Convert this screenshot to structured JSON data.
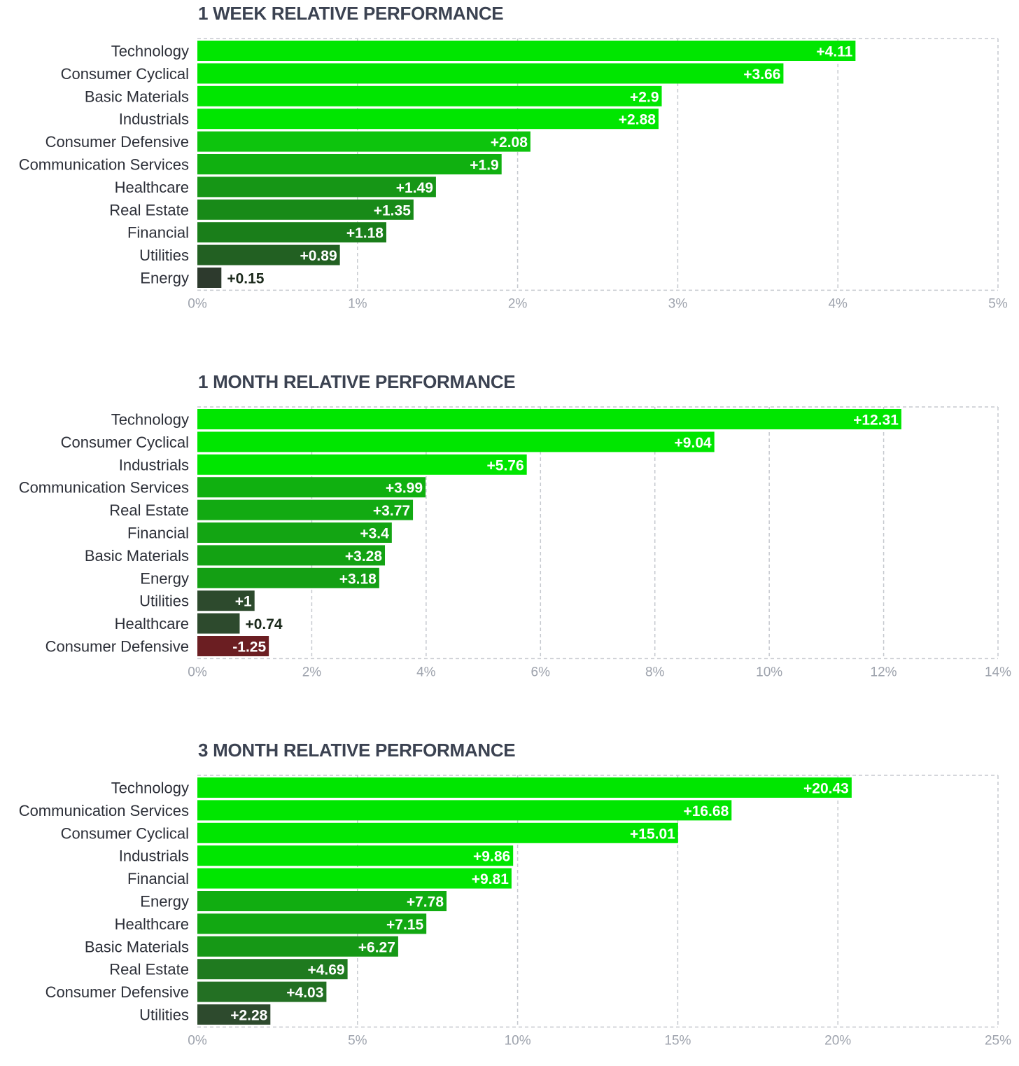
{
  "chart_data": [
    {
      "type": "bar",
      "orientation": "horizontal",
      "title": "1 WEEK RELATIVE PERFORMANCE",
      "categories": [
        "Technology",
        "Consumer Cyclical",
        "Basic Materials",
        "Industrials",
        "Consumer Defensive",
        "Communication Services",
        "Healthcare",
        "Real Estate",
        "Financial",
        "Utilities",
        "Energy"
      ],
      "values": [
        4.11,
        3.66,
        2.9,
        2.88,
        2.08,
        1.9,
        1.49,
        1.35,
        1.18,
        0.89,
        0.15
      ],
      "value_labels": [
        "+4.11",
        "+3.66",
        "+2.9",
        "+2.88",
        "+2.08",
        "+1.9",
        "+1.49",
        "+1.35",
        "+1.18",
        "+0.89",
        "+0.15"
      ],
      "bar_colors": [
        "#00e600",
        "#00e600",
        "#00e600",
        "#00e600",
        "#0dc40d",
        "#10b010",
        "#169616",
        "#188a18",
        "#1a7e1a",
        "#226022",
        "#2d3a2d"
      ],
      "xlim": [
        0,
        5
      ],
      "ticks": [
        "0%",
        "1%",
        "2%",
        "3%",
        "4%",
        "5%"
      ],
      "grid": true
    },
    {
      "type": "bar",
      "orientation": "horizontal",
      "title": "1 MONTH RELATIVE PERFORMANCE",
      "categories": [
        "Technology",
        "Consumer Cyclical",
        "Industrials",
        "Communication Services",
        "Real Estate",
        "Financial",
        "Basic Materials",
        "Energy",
        "Utilities",
        "Healthcare",
        "Consumer Defensive"
      ],
      "values": [
        12.31,
        9.04,
        5.76,
        3.99,
        3.77,
        3.4,
        3.28,
        3.18,
        1,
        0.74,
        -1.25
      ],
      "value_labels": [
        "+12.31",
        "+9.04",
        "+5.76",
        "+3.99",
        "+3.77",
        "+3.4",
        "+3.28",
        "+3.18",
        "+1",
        "+0.74",
        "-1.25"
      ],
      "bar_colors": [
        "#00e600",
        "#00e600",
        "#00e600",
        "#10b010",
        "#12aa12",
        "#13a513",
        "#13a213",
        "#149f14",
        "#2d4a2d",
        "#2d4a2d",
        "#6b1e22"
      ],
      "xlim": [
        0,
        14
      ],
      "ticks": [
        "0%",
        "2%",
        "4%",
        "6%",
        "8%",
        "10%",
        "12%",
        "14%"
      ],
      "grid": true
    },
    {
      "type": "bar",
      "orientation": "horizontal",
      "title": "3 MONTH RELATIVE PERFORMANCE",
      "categories": [
        "Technology",
        "Communication Services",
        "Consumer Cyclical",
        "Industrials",
        "Financial",
        "Energy",
        "Healthcare",
        "Basic Materials",
        "Real Estate",
        "Consumer Defensive",
        "Utilities"
      ],
      "values": [
        20.43,
        16.68,
        15.01,
        9.86,
        9.81,
        7.78,
        7.15,
        6.27,
        4.69,
        4.03,
        2.28
      ],
      "value_labels": [
        "+20.43",
        "+16.68",
        "+15.01",
        "+9.86",
        "+9.81",
        "+7.78",
        "+7.15",
        "+6.27",
        "+4.69",
        "+4.03",
        "+2.28"
      ],
      "bar_colors": [
        "#00e600",
        "#00e600",
        "#00e600",
        "#00e600",
        "#00e600",
        "#11ad11",
        "#12a812",
        "#169816",
        "#1f7a1f",
        "#237023",
        "#2d4a2d"
      ],
      "xlim": [
        0,
        25
      ],
      "ticks": [
        "0%",
        "5%",
        "10%",
        "15%",
        "20%",
        "25%"
      ],
      "grid": true
    }
  ]
}
